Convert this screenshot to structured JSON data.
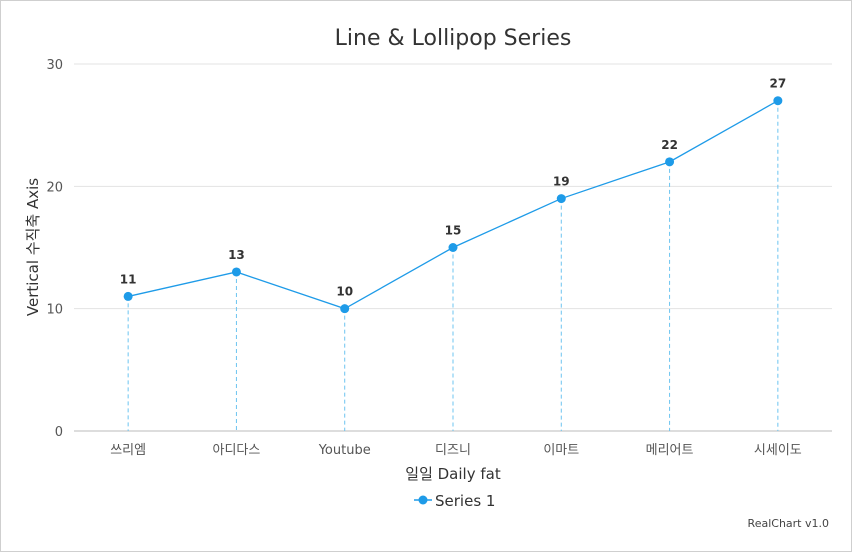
{
  "chart_data": {
    "type": "line",
    "title": "Line & Lollipop Series",
    "xlabel": "일일 Daily fat",
    "ylabel": "Vertical 수직축 Axis",
    "categories": [
      "쓰리엠",
      "아디다스",
      "Youtube",
      "디즈니",
      "이마트",
      "메리어트",
      "시세이도"
    ],
    "series": [
      {
        "name": "Series 1",
        "values": [
          11,
          13,
          10,
          15,
          19,
          22,
          27
        ]
      }
    ],
    "ylim": [
      0,
      30
    ],
    "yticks": [
      0,
      10,
      20,
      30
    ],
    "grid": true,
    "legend": "bottom",
    "data_labels": true,
    "colors": {
      "series": "#1e9be8",
      "stem": "#6cc4f0",
      "grid": "#e3e3e3",
      "axis": "#bbbbbb"
    }
  },
  "credit": "RealChart v1.0"
}
